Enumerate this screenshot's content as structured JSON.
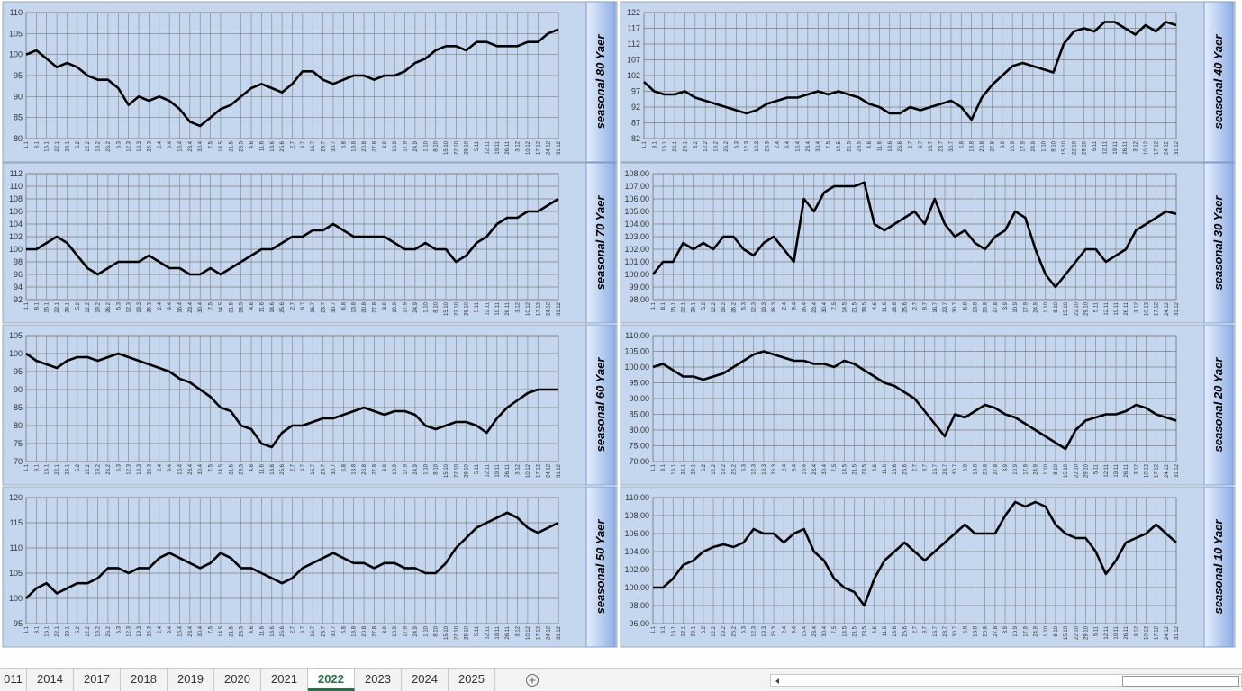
{
  "chart_data": [
    {
      "type": "line",
      "title": "seasonal 80 Yaer",
      "categories": [
        "1.1",
        "8.1",
        "15.1",
        "22.1",
        "29.1",
        "5.2",
        "12.2",
        "19.2",
        "26.2",
        "5.3",
        "12.3",
        "19.3",
        "26.3",
        "2.4",
        "9.4",
        "16.4",
        "23.4",
        "30.4",
        "7.5",
        "14.5",
        "21.5",
        "28.5",
        "4.6",
        "11.6",
        "18.6",
        "25.6",
        "2.7",
        "9.7",
        "16.7",
        "23.7",
        "30.7",
        "6.8",
        "13.8",
        "20.8",
        "27.8",
        "3.9",
        "10.9",
        "17.9",
        "24.9",
        "1.10",
        "8.10",
        "15.10",
        "22.10",
        "29.10",
        "5.11",
        "12.11",
        "19.11",
        "26.11",
        "3.12",
        "10.12",
        "17.12",
        "24.12",
        "31.12"
      ],
      "values": [
        100,
        101,
        99,
        97,
        98,
        97,
        95,
        94,
        94,
        92,
        88,
        90,
        89,
        90,
        89,
        87,
        84,
        83,
        85,
        87,
        88,
        90,
        92,
        93,
        92,
        91,
        93,
        96,
        96,
        94,
        93,
        94,
        95,
        95,
        94,
        95,
        95,
        96,
        98,
        99,
        101,
        102,
        102,
        101,
        103,
        103,
        102,
        102,
        102,
        103,
        103,
        105,
        106
      ],
      "color": "#000000",
      "ylim": [
        80,
        110
      ],
      "yticks": [
        80,
        85,
        90,
        95,
        100,
        105,
        110
      ],
      "grid": true
    },
    {
      "type": "line",
      "title": "seasonal 40 Yaer",
      "categories": [
        "1.1",
        "8.1",
        "15.1",
        "22.1",
        "29.1",
        "5.2",
        "12.2",
        "19.2",
        "26.2",
        "5.3",
        "12.3",
        "19.3",
        "26.3",
        "2.4",
        "9.4",
        "16.4",
        "23.4",
        "30.4",
        "7.5",
        "14.5",
        "21.5",
        "28.5",
        "4.6",
        "11.6",
        "18.6",
        "25.6",
        "2.7",
        "9.7",
        "16.7",
        "23.7",
        "30.7",
        "6.8",
        "13.8",
        "20.8",
        "27.8",
        "3.9",
        "10.9",
        "17.9",
        "24.9",
        "1.10",
        "8.10",
        "15.10",
        "22.10",
        "29.10",
        "5.11",
        "12.11",
        "19.11",
        "26.11",
        "3.12",
        "10.12",
        "17.12",
        "24.12",
        "31.12"
      ],
      "values": [
        100,
        97,
        96,
        96,
        97,
        95,
        94,
        93,
        92,
        91,
        90,
        91,
        93,
        94,
        95,
        95,
        96,
        97,
        96,
        97,
        96,
        95,
        93,
        92,
        90,
        90,
        92,
        91,
        92,
        93,
        94,
        92,
        88,
        95,
        99,
        102,
        105,
        106,
        105,
        104,
        103,
        112,
        116,
        117,
        116,
        119,
        119,
        117,
        115,
        118,
        116,
        119,
        118
      ],
      "color": "#000000",
      "ylim": [
        82,
        122
      ],
      "yticks": [
        82,
        87,
        92,
        97,
        102,
        107,
        112,
        117,
        122
      ],
      "grid": true
    },
    {
      "type": "line",
      "title": "seasonal 70 Yaer",
      "categories": [
        "1.1",
        "8.1",
        "15.1",
        "22.1",
        "29.1",
        "5.2",
        "12.2",
        "19.2",
        "26.2",
        "5.3",
        "12.3",
        "19.3",
        "26.3",
        "2.4",
        "9.4",
        "16.4",
        "23.4",
        "30.4",
        "7.5",
        "14.5",
        "21.5",
        "28.5",
        "4.6",
        "11.6",
        "18.6",
        "25.6",
        "2.7",
        "9.7",
        "16.7",
        "23.7",
        "30.7",
        "6.8",
        "13.8",
        "20.8",
        "27.8",
        "3.9",
        "10.9",
        "17.9",
        "24.9",
        "1.10",
        "8.10",
        "15.10",
        "22.10",
        "29.10",
        "5.11",
        "12.11",
        "19.11",
        "26.11",
        "3.12",
        "10.12",
        "17.12",
        "24.12",
        "31.12"
      ],
      "values": [
        100,
        100,
        101,
        102,
        101,
        99,
        97,
        96,
        97,
        98,
        98,
        98,
        99,
        98,
        97,
        97,
        96,
        96,
        97,
        96,
        97,
        98,
        99,
        100,
        100,
        101,
        102,
        102,
        103,
        103,
        104,
        103,
        102,
        102,
        102,
        102,
        101,
        100,
        100,
        101,
        100,
        100,
        98,
        99,
        101,
        102,
        104,
        105,
        105,
        106,
        106,
        107,
        108
      ],
      "color": "#000000",
      "ylim": [
        92,
        112
      ],
      "yticks": [
        92,
        94,
        96,
        98,
        100,
        102,
        104,
        106,
        108,
        110,
        112
      ],
      "grid": true
    },
    {
      "type": "line",
      "title": "seasonal 30 Yaer",
      "categories": [
        "1.1",
        "8.1",
        "15.1",
        "22.1",
        "29.1",
        "5.2",
        "12.2",
        "19.2",
        "26.2",
        "5.3",
        "12.3",
        "19.3",
        "26.3",
        "2.4",
        "9.4",
        "16.4",
        "23.4",
        "30.4",
        "7.5",
        "14.5",
        "21.5",
        "28.5",
        "4.6",
        "11.6",
        "18.6",
        "25.6",
        "2.7",
        "9.7",
        "16.7",
        "23.7",
        "30.7",
        "6.8",
        "13.8",
        "20.8",
        "27.8",
        "3.9",
        "10.9",
        "17.9",
        "24.9",
        "1.10",
        "8.10",
        "15.10",
        "22.10",
        "29.10",
        "5.11",
        "12.11",
        "19.11",
        "26.11",
        "3.12",
        "10.12",
        "17.12",
        "24.12",
        "31.12"
      ],
      "values": [
        100,
        101,
        101,
        102.5,
        102,
        102.5,
        102,
        103,
        103,
        102,
        101.5,
        102.5,
        103,
        102,
        101,
        106,
        105,
        106.5,
        107,
        107,
        107,
        107.3,
        104,
        103.5,
        104,
        104.5,
        105,
        104,
        106,
        104,
        103,
        103.5,
        102.5,
        102,
        103,
        103.5,
        105,
        104.5,
        102,
        100,
        99,
        100,
        101,
        102,
        102,
        101,
        101.5,
        102,
        103.5,
        104,
        104.5,
        105,
        104.8
      ],
      "color": "#000000",
      "ylim": [
        98,
        108
      ],
      "yticks": [
        {
          "value": 98,
          "label": "98,00"
        },
        {
          "value": 99,
          "label": "99,00"
        },
        {
          "value": 100,
          "label": "100,00"
        },
        {
          "value": 101,
          "label": "101,00"
        },
        {
          "value": 102,
          "label": "102,00"
        },
        {
          "value": 103,
          "label": "103,00"
        },
        {
          "value": 104,
          "label": "104,00"
        },
        {
          "value": 105,
          "label": "105,00"
        },
        {
          "value": 106,
          "label": "106,00"
        },
        {
          "value": 107,
          "label": "107,00"
        },
        {
          "value": 108,
          "label": "108,00"
        }
      ],
      "grid": true
    },
    {
      "type": "line",
      "title": "seasonal 60 Yaer",
      "categories": [
        "1.1",
        "8.1",
        "15.1",
        "22.1",
        "29.1",
        "5.2",
        "12.2",
        "19.2",
        "26.2",
        "5.3",
        "12.3",
        "19.3",
        "26.3",
        "2.4",
        "9.4",
        "16.4",
        "23.4",
        "30.4",
        "7.5",
        "14.5",
        "21.5",
        "28.5",
        "4.6",
        "11.6",
        "18.6",
        "25.6",
        "2.7",
        "9.7",
        "16.7",
        "23.7",
        "30.7",
        "6.8",
        "13.8",
        "20.8",
        "27.8",
        "3.9",
        "10.9",
        "17.9",
        "24.9",
        "1.10",
        "8.10",
        "15.10",
        "22.10",
        "29.10",
        "5.11",
        "12.11",
        "19.11",
        "26.11",
        "3.12",
        "10.12",
        "17.12",
        "24.12",
        "31.12"
      ],
      "values": [
        100,
        98,
        97,
        96,
        98,
        99,
        99,
        98,
        99,
        100,
        99,
        98,
        97,
        96,
        95,
        93,
        92,
        90,
        88,
        85,
        84,
        80,
        79,
        75,
        74,
        78,
        80,
        80,
        81,
        82,
        82,
        83,
        84,
        85,
        84,
        83,
        84,
        84,
        83,
        80,
        79,
        80,
        81,
        81,
        80,
        78,
        82,
        85,
        87,
        89,
        90,
        90,
        90
      ],
      "color": "#000000",
      "ylim": [
        70,
        105
      ],
      "yticks": [
        70,
        75,
        80,
        85,
        90,
        95,
        100,
        105
      ],
      "grid": true
    },
    {
      "type": "line",
      "title": "seasonal 20 Yaer",
      "categories": [
        "1.1",
        "8.1",
        "15.1",
        "22.1",
        "29.1",
        "5.2",
        "12.2",
        "19.2",
        "26.2",
        "5.3",
        "12.3",
        "19.3",
        "26.3",
        "2.4",
        "9.4",
        "16.4",
        "23.4",
        "30.4",
        "7.5",
        "14.5",
        "21.5",
        "28.5",
        "4.6",
        "11.6",
        "18.6",
        "25.6",
        "2.7",
        "9.7",
        "16.7",
        "23.7",
        "30.7",
        "6.8",
        "13.8",
        "20.8",
        "27.8",
        "3.9",
        "10.9",
        "17.9",
        "24.9",
        "1.10",
        "8.10",
        "15.10",
        "22.10",
        "29.10",
        "5.11",
        "12.11",
        "19.11",
        "26.11",
        "3.12",
        "10.12",
        "17.12",
        "24.12",
        "31.12"
      ],
      "values": [
        100,
        101,
        99,
        97,
        97,
        96,
        97,
        98,
        100,
        102,
        104,
        105,
        104,
        103,
        102,
        102,
        101,
        101,
        100,
        102,
        101,
        99,
        97,
        95,
        94,
        92,
        90,
        86,
        82,
        78,
        85,
        84,
        86,
        88,
        87,
        85,
        84,
        82,
        80,
        78,
        76,
        74,
        80,
        83,
        84,
        85,
        85,
        86,
        88,
        87,
        85,
        84,
        83
      ],
      "color": "#000000",
      "ylim": [
        70,
        110
      ],
      "yticks": [
        {
          "value": 70,
          "label": "70,00"
        },
        {
          "value": 75,
          "label": "75,00"
        },
        {
          "value": 80,
          "label": "80,00"
        },
        {
          "value": 85,
          "label": "85,00"
        },
        {
          "value": 90,
          "label": "90,00"
        },
        {
          "value": 95,
          "label": "95,00"
        },
        {
          "value": 100,
          "label": "100,00"
        },
        {
          "value": 105,
          "label": "105,00"
        },
        {
          "value": 110,
          "label": "110,00"
        }
      ],
      "grid": true
    },
    {
      "type": "line",
      "title": "seasonal 50 Yaer",
      "categories": [
        "1.1",
        "8.1",
        "15.1",
        "22.1",
        "29.1",
        "5.2",
        "12.2",
        "19.2",
        "26.2",
        "5.3",
        "12.3",
        "19.3",
        "26.3",
        "2.4",
        "9.4",
        "16.4",
        "23.4",
        "30.4",
        "7.5",
        "14.5",
        "21.5",
        "28.5",
        "4.6",
        "11.6",
        "18.6",
        "25.6",
        "2.7",
        "9.7",
        "16.7",
        "23.7",
        "30.7",
        "6.8",
        "13.8",
        "20.8",
        "27.8",
        "3.9",
        "10.9",
        "17.9",
        "24.9",
        "1.10",
        "8.10",
        "15.10",
        "22.10",
        "29.10",
        "5.11",
        "12.11",
        "19.11",
        "26.11",
        "3.12",
        "10.12",
        "17.12",
        "24.12",
        "31.12"
      ],
      "values": [
        100,
        102,
        103,
        101,
        102,
        103,
        103,
        104,
        106,
        106,
        105,
        106,
        106,
        108,
        109,
        108,
        107,
        106,
        107,
        109,
        108,
        106,
        106,
        105,
        104,
        103,
        104,
        106,
        107,
        108,
        109,
        108,
        107,
        107,
        106,
        107,
        107,
        106,
        106,
        105,
        105,
        107,
        110,
        112,
        114,
        115,
        116,
        117,
        116,
        114,
        113,
        114,
        115
      ],
      "color": "#000000",
      "ylim": [
        95,
        120
      ],
      "yticks": [
        95,
        100,
        105,
        110,
        115,
        120
      ],
      "grid": true
    },
    {
      "type": "line",
      "title": "seasonal 10 Yaer",
      "categories": [
        "1.1",
        "8.1",
        "15.1",
        "22.1",
        "29.1",
        "5.2",
        "12.2",
        "19.2",
        "26.2",
        "5.3",
        "12.3",
        "19.3",
        "26.3",
        "2.4",
        "9.4",
        "16.4",
        "23.4",
        "30.4",
        "7.5",
        "14.5",
        "21.5",
        "28.5",
        "4.6",
        "11.6",
        "18.6",
        "25.6",
        "2.7",
        "9.7",
        "16.7",
        "23.7",
        "30.7",
        "6.8",
        "13.8",
        "20.8",
        "27.8",
        "3.9",
        "10.9",
        "17.9",
        "24.9",
        "1.10",
        "8.10",
        "15.10",
        "22.10",
        "29.10",
        "5.11",
        "12.11",
        "19.11",
        "26.11",
        "3.12",
        "10.12",
        "17.12",
        "24.12",
        "31.12"
      ],
      "values": [
        100,
        100,
        101,
        102.5,
        103,
        104,
        104.5,
        104.8,
        104.5,
        105,
        106.5,
        106,
        106,
        105,
        106,
        106.5,
        104,
        103,
        101,
        100,
        99.5,
        98,
        101,
        103,
        104,
        105,
        104,
        103,
        104,
        105,
        106,
        107,
        106,
        106,
        106,
        108,
        109.5,
        109,
        109.5,
        109,
        107,
        106,
        105.5,
        105.5,
        104,
        101.5,
        103,
        105,
        105.5,
        106,
        107,
        106,
        105
      ],
      "color": "#000000",
      "ylim": [
        96,
        110
      ],
      "yticks": [
        {
          "value": 96,
          "label": "96,00"
        },
        {
          "value": 98,
          "label": "98,00"
        },
        {
          "value": 100,
          "label": "100,00"
        },
        {
          "value": 102,
          "label": "102,00"
        },
        {
          "value": 104,
          "label": "104,00"
        },
        {
          "value": 106,
          "label": "106,00"
        },
        {
          "value": 108,
          "label": "108,00"
        },
        {
          "value": 110,
          "label": "110,00"
        }
      ],
      "grid": true
    }
  ],
  "tabs": [
    "011",
    "2014",
    "2017",
    "2018",
    "2019",
    "2020",
    "2021",
    "2022",
    "2023",
    "2024",
    "2025"
  ],
  "active_tab": "2022"
}
